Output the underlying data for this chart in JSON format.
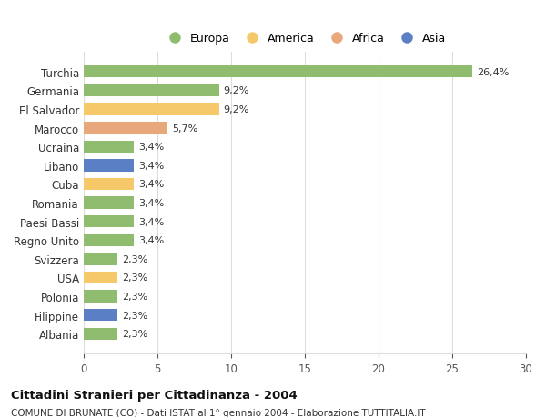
{
  "countries": [
    "Albania",
    "Filippine",
    "Polonia",
    "USA",
    "Svizzera",
    "Regno Unito",
    "Paesi Bassi",
    "Romania",
    "Cuba",
    "Libano",
    "Ucraina",
    "Marocco",
    "El Salvador",
    "Germania",
    "Turchia"
  ],
  "values": [
    2.3,
    2.3,
    2.3,
    2.3,
    2.3,
    3.4,
    3.4,
    3.4,
    3.4,
    3.4,
    3.4,
    5.7,
    9.2,
    9.2,
    26.4
  ],
  "labels": [
    "2,3%",
    "2,3%",
    "2,3%",
    "2,3%",
    "2,3%",
    "3,4%",
    "3,4%",
    "3,4%",
    "3,4%",
    "3,4%",
    "3,4%",
    "5,7%",
    "9,2%",
    "9,2%",
    "26,4%"
  ],
  "colors": [
    "#8fbc6e",
    "#5b7fc4",
    "#8fbc6e",
    "#f5c96a",
    "#8fbc6e",
    "#8fbc6e",
    "#8fbc6e",
    "#8fbc6e",
    "#f5c96a",
    "#5b7fc4",
    "#8fbc6e",
    "#e8a87c",
    "#f5c96a",
    "#8fbc6e",
    "#8fbc6e"
  ],
  "legend_labels": [
    "Europa",
    "America",
    "Africa",
    "Asia"
  ],
  "legend_colors": [
    "#8fbc6e",
    "#f5c96a",
    "#e8a87c",
    "#5b7fc4"
  ],
  "title1": "Cittadini Stranieri per Cittadinanza - 2004",
  "title2": "COMUNE DI BRUNATE (CO) - Dati ISTAT al 1° gennaio 2004 - Elaborazione TUTTITALIA.IT",
  "xlim": [
    0,
    30
  ],
  "xticks": [
    0,
    5,
    10,
    15,
    20,
    25,
    30
  ],
  "background_color": "#ffffff",
  "grid_color": "#dddddd"
}
